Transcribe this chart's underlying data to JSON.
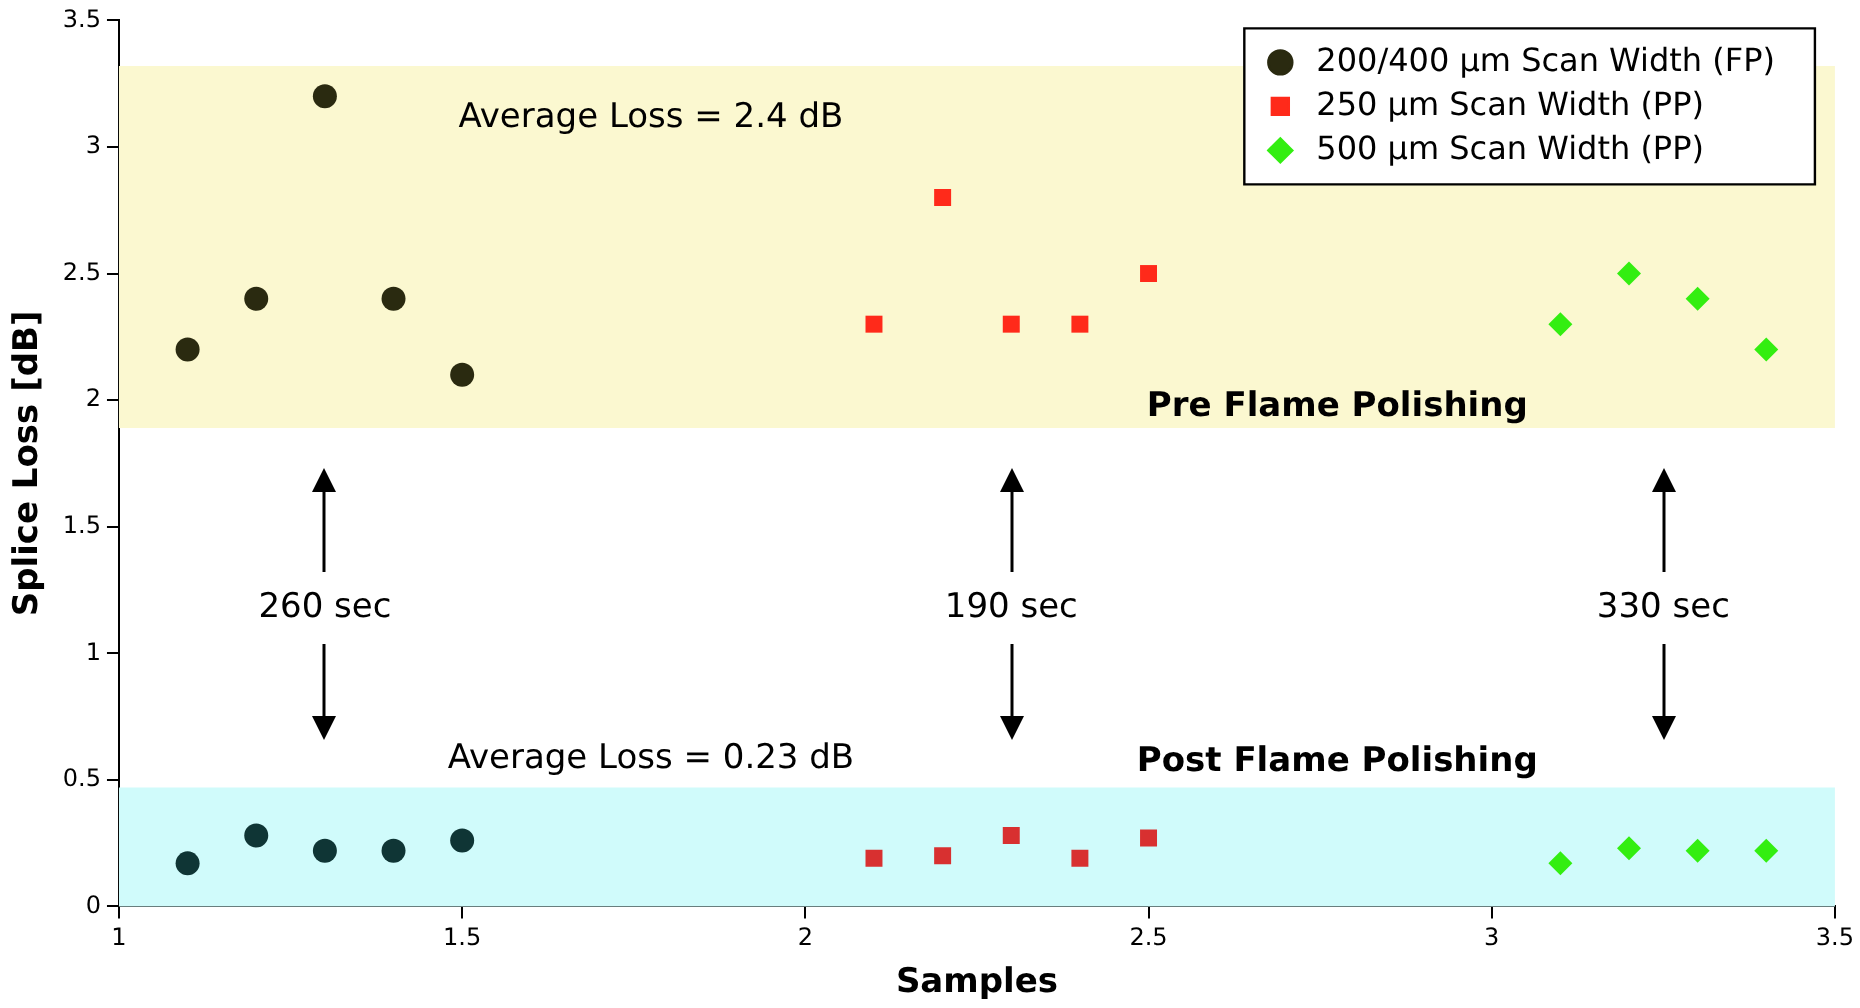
{
  "chart_data": {
    "type": "scatter",
    "xlabel": "Samples",
    "ylabel": "Splice Loss [dB]",
    "xlim": [
      1,
      3.5
    ],
    "xticks": [
      1,
      1.5,
      2,
      2.5,
      3,
      3.5
    ],
    "ylim": [
      0,
      3.5
    ],
    "yticks": [
      0,
      0.5,
      1,
      1.5,
      2,
      2.5,
      3,
      3.5
    ],
    "grid": false,
    "legend": "top right",
    "series": [
      {
        "name": "200/400 µm Scan Width (FP)",
        "color": "#2a2a10",
        "marker": "circle",
        "x": [
          1.1,
          1.2,
          1.3,
          1.4,
          1.5,
          1.1,
          1.2,
          1.3,
          1.4,
          1.5
        ],
        "values": [
          2.2,
          2.4,
          3.2,
          2.4,
          2.1,
          0.17,
          0.28,
          0.22,
          0.22,
          0.26
        ],
        "colors": [
          "#2a2a10",
          "#2a2a10",
          "#2a2a10",
          "#2a2a10",
          "#2a2a10",
          "#0f3535",
          "#0f3535",
          "#0f3535",
          "#0f3535",
          "#0f3535"
        ]
      },
      {
        "name": "250 µm Scan Width (PP)",
        "color": "#ff2a1a",
        "marker": "square",
        "x": [
          2.1,
          2.2,
          2.3,
          2.4,
          2.5,
          2.1,
          2.2,
          2.3,
          2.4,
          2.5
        ],
        "values": [
          2.3,
          2.8,
          2.3,
          2.3,
          2.5,
          0.19,
          0.2,
          0.28,
          0.19,
          0.27
        ],
        "colors": [
          "#ff2a1a",
          "#ff2a1a",
          "#ff2a1a",
          "#ff2a1a",
          "#ff2a1a",
          "#d83030",
          "#d83030",
          "#d83030",
          "#d83030",
          "#d83030"
        ]
      },
      {
        "name": "500 µm Scan Width (PP)",
        "color": "#33ee11",
        "marker": "diamond",
        "x": [
          3.1,
          3.2,
          3.3,
          3.4,
          3.1,
          3.2,
          3.3,
          3.4
        ],
        "values": [
          2.3,
          2.5,
          2.4,
          2.2,
          0.17,
          0.23,
          0.22,
          0.22
        ]
      }
    ],
    "bands": [
      {
        "axis": "y",
        "from": 1.89,
        "to": 3.32,
        "label": "Pre Flame Polishing",
        "color": "#fbf8d0"
      },
      {
        "axis": "y",
        "from": 0,
        "to": 0.47,
        "label": "Post Flame Polishing",
        "color": "#d0fbfb"
      }
    ],
    "annotations": [
      "260 sec",
      "190 sec",
      "330 sec",
      "Average Loss = 2.4 dB",
      "Average Loss = 0.23 dB"
    ]
  }
}
